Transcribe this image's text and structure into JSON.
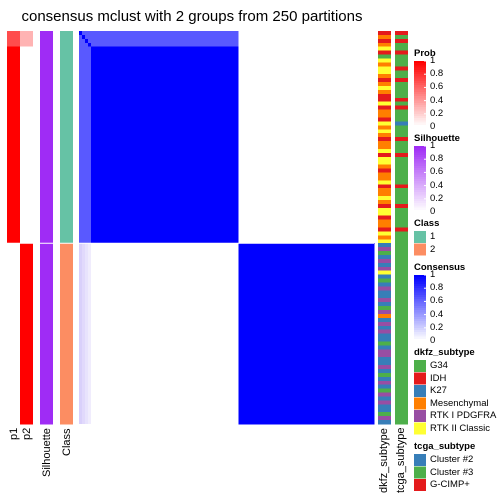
{
  "chart_data": {
    "type": "heatmap",
    "title": "consensus mclust with 2 groups from 250 partitions",
    "n_samples": 100,
    "group_sizes": [
      54,
      46
    ],
    "annotation_columns": [
      "p1",
      "p2",
      "Silhouette",
      "Class"
    ],
    "right_annotation_columns": [
      "dkfz_subtype",
      "tcga_subtype"
    ],
    "prob_p2_group1_first": 0.3,
    "consensus_group1_head": 0.65,
    "silhouette_value": 1.0,
    "legends": [
      {
        "title": "Prob",
        "type": "continuous",
        "ticks": [
          "1",
          "0.8",
          "0.6",
          "0.4",
          "0.2",
          "0"
        ],
        "colors": [
          "#ff0000",
          "#ffffff"
        ]
      },
      {
        "title": "Silhouette",
        "type": "continuous",
        "ticks": [
          "1",
          "0.8",
          "0.6",
          "0.4",
          "0.2",
          "0"
        ],
        "colors": [
          "#9f2cf5",
          "#ffffff"
        ]
      },
      {
        "title": "Class",
        "type": "discrete",
        "items": [
          {
            "label": "1",
            "color": "#66c2a5"
          },
          {
            "label": "2",
            "color": "#fc8d62"
          }
        ]
      },
      {
        "title": "Consensus",
        "type": "continuous",
        "ticks": [
          "1",
          "0.8",
          "0.6",
          "0.4",
          "0.2",
          "0"
        ],
        "colors": [
          "#0000ff",
          "#ffffff"
        ]
      },
      {
        "title": "dkfz_subtype",
        "type": "discrete",
        "items": [
          {
            "label": "G34",
            "color": "#4daf4a"
          },
          {
            "label": "IDH",
            "color": "#e41a1c"
          },
          {
            "label": "K27",
            "color": "#377eb8"
          },
          {
            "label": "Mesenchymal",
            "color": "#ff7f00"
          },
          {
            "label": "RTK I PDGFRA",
            "color": "#984ea3"
          },
          {
            "label": "RTK II Classic",
            "color": "#ffff33"
          }
        ]
      },
      {
        "title": "tcga_subtype",
        "type": "discrete",
        "items": [
          {
            "label": "Cluster #2",
            "color": "#377eb8"
          },
          {
            "label": "Cluster #3",
            "color": "#4daf4a"
          },
          {
            "label": "G-CIMP+",
            "color": "#e41a1c"
          }
        ]
      }
    ],
    "dkfz_subtype_sequence": [
      "IDH",
      "Mesenchymal",
      "IDH",
      "Mesenchymal",
      "RTK II Classic",
      "IDH",
      "G34",
      "RTK II Classic",
      "Mesenchymal",
      "RTK II Classic",
      "RTK II Classic",
      "Mesenchymal",
      "IDH",
      "Mesenchymal",
      "RTK II Classic",
      "Mesenchymal",
      "IDH",
      "IDH",
      "RTK II Classic",
      "IDH",
      "Mesenchymal",
      "Mesenchymal",
      "IDH",
      "RTK II Classic",
      "Mesenchymal",
      "RTK II Classic",
      "Mesenchymal",
      "IDH",
      "Mesenchymal",
      "Mesenchymal",
      "RTK II Classic",
      "IDH",
      "RTK II Classic",
      "RTK II Classic",
      "Mesenchymal",
      "IDH",
      "Mesenchymal",
      "Mesenchymal",
      "RTK II Classic",
      "IDH",
      "Mesenchymal",
      "Mesenchymal",
      "RTK II Classic",
      "Mesenchymal",
      "IDH",
      "RTK II Classic",
      "RTK II Classic",
      "IDH",
      "Mesenchymal",
      "Mesenchymal",
      "IDH",
      "RTK II Classic",
      "Mesenchymal",
      "RTK II Classic",
      "K27",
      "RTK I PDGFRA",
      "G34",
      "K27",
      "RTK I PDGFRA",
      "K27",
      "RTK I PDGFRA",
      "RTK II Classic",
      "K27",
      "G34",
      "K27",
      "RTK I PDGFRA",
      "K27",
      "K27",
      "RTK I PDGFRA",
      "K27",
      "G34",
      "RTK I PDGFRA",
      "Mesenchymal",
      "K27",
      "RTK I PDGFRA",
      "K27",
      "RTK I PDGFRA",
      "K27",
      "K27",
      "G34",
      "K27",
      "RTK I PDGFRA",
      "RTK I PDGFRA",
      "K27",
      "K27",
      "RTK I PDGFRA",
      "K27",
      "G34",
      "K27",
      "RTK I PDGFRA",
      "K27",
      "G34",
      "RTK I PDGFRA",
      "K27",
      "RTK I PDGFRA",
      "K27",
      "K27",
      "G34",
      "RTK I PDGFRA",
      "K27"
    ],
    "tcga_subtype_sequence": [
      "G-CIMP+",
      "Cluster #3",
      "G-CIMP+",
      "Cluster #3",
      "Cluster #3",
      "G-CIMP+",
      "Cluster #3",
      "Cluster #3",
      "Cluster #3",
      "G-CIMP+",
      "Cluster #3",
      "Cluster #3",
      "G-CIMP+",
      "Cluster #3",
      "Cluster #3",
      "Cluster #3",
      "Cluster #3",
      "G-CIMP+",
      "Cluster #3",
      "G-CIMP+",
      "Cluster #3",
      "Cluster #3",
      "Cluster #3",
      "Cluster #2",
      "Cluster #3",
      "Cluster #3",
      "Cluster #3",
      "G-CIMP+",
      "Cluster #3",
      "Cluster #3",
      "Cluster #3",
      "G-CIMP+",
      "Cluster #3",
      "Cluster #3",
      "Cluster #3",
      "Cluster #3",
      "Cluster #3",
      "Cluster #3",
      "Cluster #3",
      "G-CIMP+",
      "Cluster #3",
      "Cluster #3",
      "Cluster #3",
      "Cluster #3",
      "G-CIMP+",
      "Cluster #3",
      "Cluster #3",
      "Cluster #3",
      "Cluster #3",
      "Cluster #3",
      "G-CIMP+",
      "Cluster #3",
      "Cluster #3",
      "Cluster #3",
      "Cluster #3",
      "Cluster #3",
      "Cluster #3",
      "Cluster #3",
      "Cluster #3",
      "Cluster #3",
      "Cluster #3",
      "Cluster #3",
      "Cluster #3",
      "Cluster #3",
      "Cluster #3",
      "Cluster #3",
      "Cluster #3",
      "Cluster #3",
      "Cluster #3",
      "Cluster #3",
      "Cluster #3",
      "Cluster #3",
      "Cluster #3",
      "Cluster #3",
      "Cluster #3",
      "Cluster #3",
      "Cluster #3",
      "Cluster #3",
      "Cluster #3",
      "Cluster #3",
      "Cluster #3",
      "Cluster #3",
      "Cluster #3",
      "Cluster #3",
      "Cluster #3",
      "Cluster #3",
      "Cluster #3",
      "Cluster #3",
      "Cluster #3",
      "Cluster #3",
      "Cluster #3",
      "Cluster #3",
      "Cluster #3",
      "Cluster #3",
      "Cluster #3",
      "Cluster #3",
      "Cluster #3",
      "Cluster #3",
      "Cluster #3",
      "Cluster #3"
    ]
  }
}
